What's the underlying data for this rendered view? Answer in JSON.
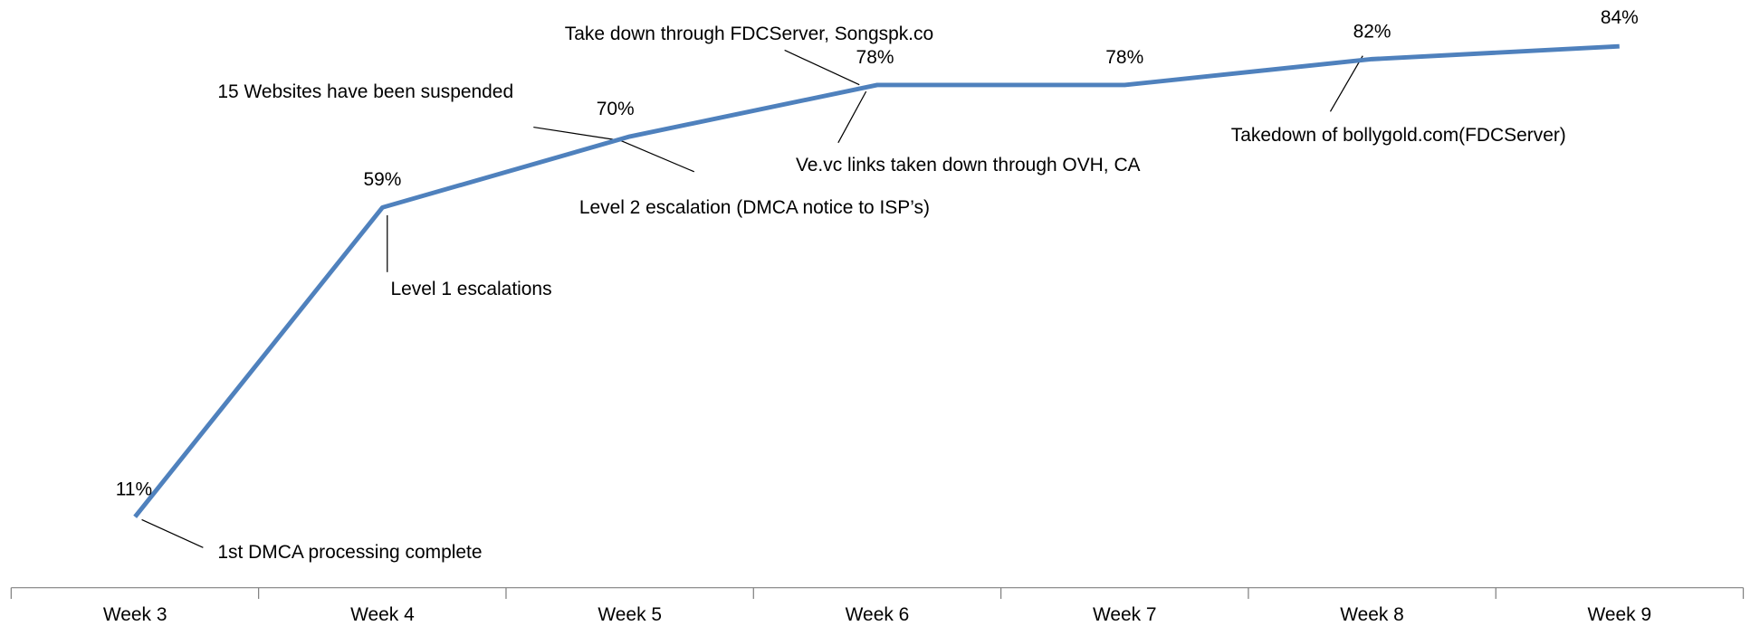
{
  "chart_data": {
    "type": "line",
    "categories": [
      "Week 3",
      "Week 4",
      "Week 5",
      "Week 6",
      "Week 7",
      "Week 8",
      "Week 9"
    ],
    "series": [
      {
        "color": "#4f81bd",
        "values": [
          11,
          59,
          70,
          78,
          78,
          82,
          84
        ],
        "value_labels": [
          "11%",
          "59%",
          "70%",
          "78%",
          "78%",
          "82%",
          "84%"
        ]
      }
    ],
    "annotations": [
      "1st DMCA processing complete",
      "Level 1 escalations",
      "15 Websites have been suspended",
      "Level 2 escalation (DMCA notice to ISP’s)",
      "Take down through FDCServer, Songspk.co",
      "Ve.vc links taken down through OVH, CA",
      "Takedown of bollygold.com(FDCServer)"
    ]
  }
}
